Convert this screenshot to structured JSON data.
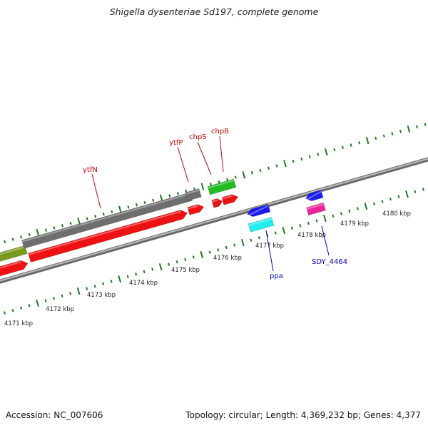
{
  "title": "Shigella dysenteriae Sd197, complete genome",
  "footer": {
    "accession": "Accession: NC_007606",
    "summary": "Topology: circular; Length: 4,369,232 bp; Genes: 4,377"
  },
  "colors": {
    "ruler_ticks": "#1f7a1f",
    "backbone": "#8a8a8a",
    "label_forward": "#d00000",
    "label_reverse": "#0000cc"
  },
  "kbp_labels": [
    "4171 kbp",
    "4172 kbp",
    "4173 kbp",
    "4174 kbp",
    "4175 kbp",
    "4176 kbp",
    "4177 kbp",
    "4178 kbp",
    "4179 kbp",
    "4180 kbp"
  ],
  "genes": [
    {
      "id": "olive-feature",
      "color": "#7a9a1e",
      "strand": "forward"
    },
    {
      "id": "gray-feature",
      "color": "#6e6e6e",
      "strand": "forward"
    },
    {
      "id": "gray-feature-2",
      "color": "#6e6e6e",
      "strand": "forward"
    },
    {
      "id": "green-feature",
      "color": "#22bb22",
      "strand": "forward"
    },
    {
      "id": "red-feature-1",
      "color": "#ee1111",
      "strand": "forward"
    },
    {
      "id": "red-feature-2",
      "color": "#ee1111",
      "strand": "forward"
    },
    {
      "id": "red-feature-3",
      "color": "#ee1111",
      "strand": "forward"
    },
    {
      "id": "red-feature-4",
      "color": "#ee1111",
      "strand": "forward"
    },
    {
      "id": "red-feature-5",
      "color": "#ee1111",
      "strand": "forward"
    },
    {
      "id": "blue-feature-1",
      "color": "#1a1aee",
      "strand": "reverse"
    },
    {
      "id": "cyan-feature",
      "color": "#22eeee",
      "strand": "reverse"
    },
    {
      "id": "blue-feature-2",
      "color": "#1a1aee",
      "strand": "reverse"
    },
    {
      "id": "magenta-feature",
      "color": "#ee2299",
      "strand": "reverse"
    }
  ],
  "gene_labels": [
    "ytfN",
    "ytfP",
    "chpS",
    "chpB",
    "ppa",
    "SDY_4464"
  ]
}
